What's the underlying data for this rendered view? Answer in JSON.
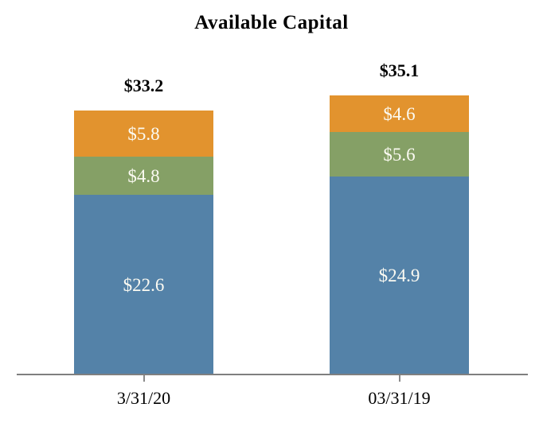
{
  "chart_data": {
    "type": "bar",
    "stacked": true,
    "title": "Available Capital",
    "categories": [
      "3/31/20",
      "03/31/19"
    ],
    "series": [
      {
        "name": "bottom-segment",
        "color": "#5482A8",
        "values": [
          22.6,
          24.9
        ],
        "labels": [
          "$22.6",
          "$24.9"
        ]
      },
      {
        "name": "middle-segment",
        "color": "#85A066",
        "values": [
          4.8,
          5.6
        ],
        "labels": [
          "$4.8",
          "$5.6"
        ]
      },
      {
        "name": "top-segment",
        "color": "#E2932E",
        "values": [
          5.8,
          4.6
        ],
        "labels": [
          "$5.8",
          "$4.6"
        ]
      }
    ],
    "totals": [
      33.2,
      35.1
    ],
    "total_labels": [
      "$33.2",
      "$35.1"
    ],
    "ylim": [
      0,
      36
    ],
    "grid": false,
    "legend": "none"
  },
  "colors": {
    "axis": "#7F7F7F",
    "tick": "#8A8A8A",
    "title_text": "#000000",
    "segment_label_text": "#FBFAF2"
  }
}
